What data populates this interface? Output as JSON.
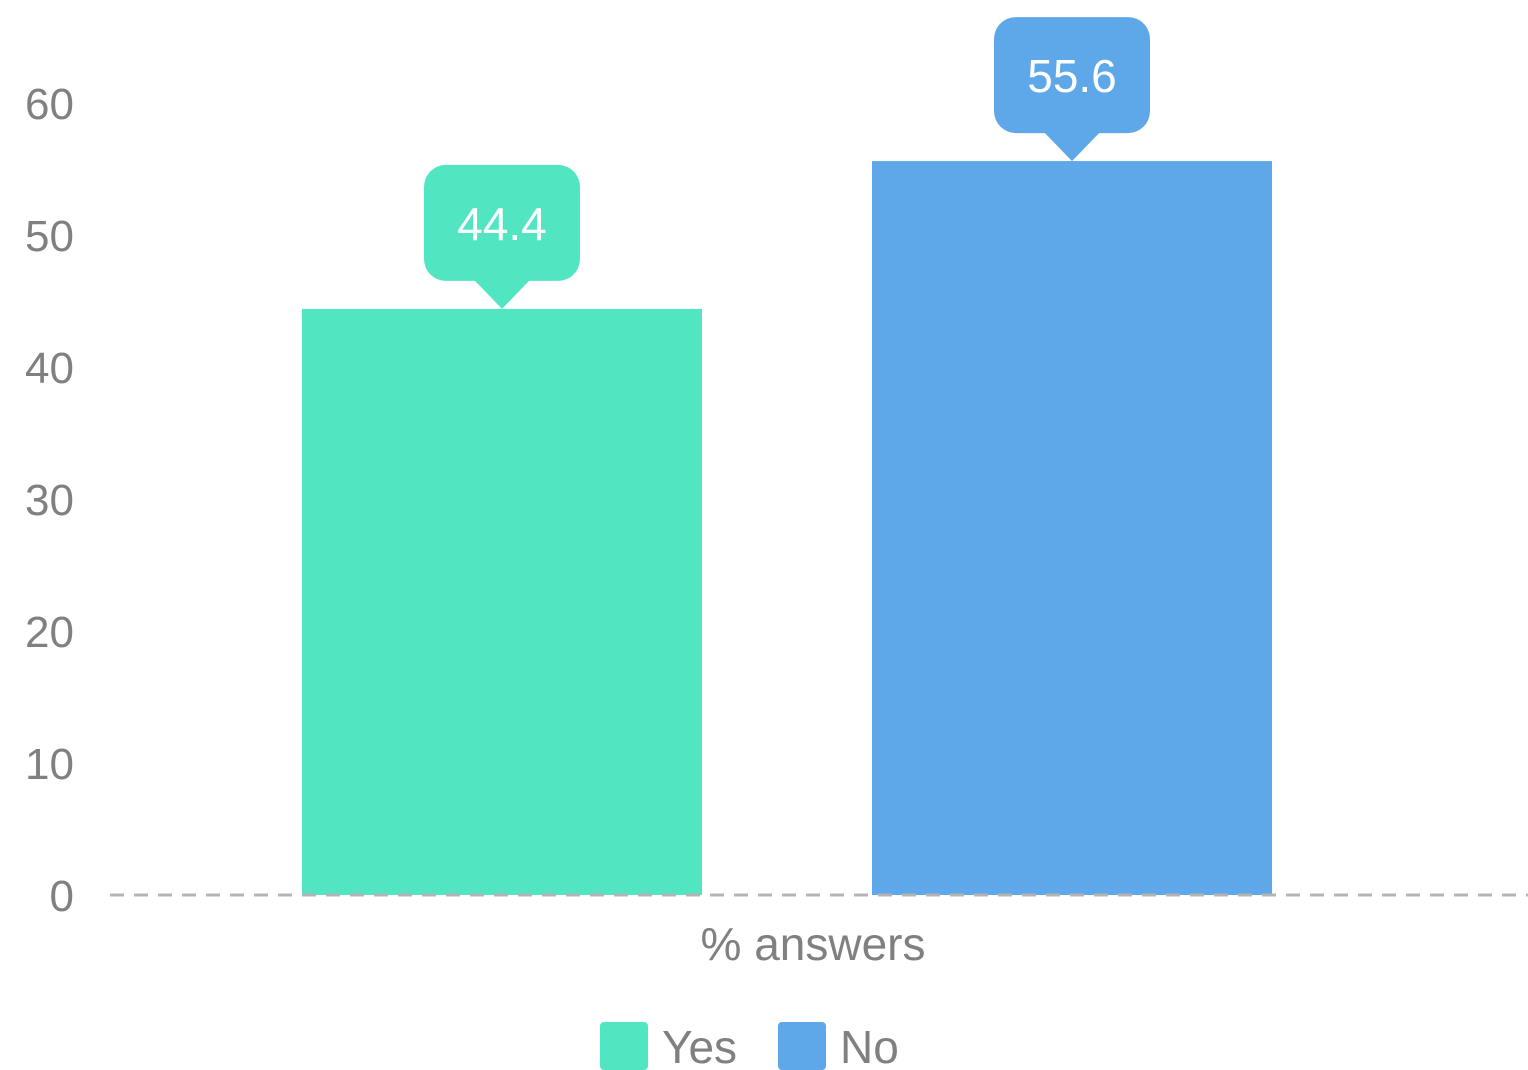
{
  "chart_data": {
    "type": "bar",
    "categories": [
      "% answers"
    ],
    "series": [
      {
        "name": "Yes",
        "values": [
          44.4
        ],
        "color": "#52e5c2"
      },
      {
        "name": "No",
        "values": [
          55.6
        ],
        "color": "#5ea8ea"
      }
    ],
    "ylim": [
      0,
      60
    ],
    "yticks": [
      0,
      10,
      20,
      30,
      40,
      50,
      60
    ],
    "data_labels": [
      "44.4",
      "55.6"
    ],
    "baseline_style": "dashed",
    "grid": false,
    "legend_placement": "bottom-center"
  }
}
